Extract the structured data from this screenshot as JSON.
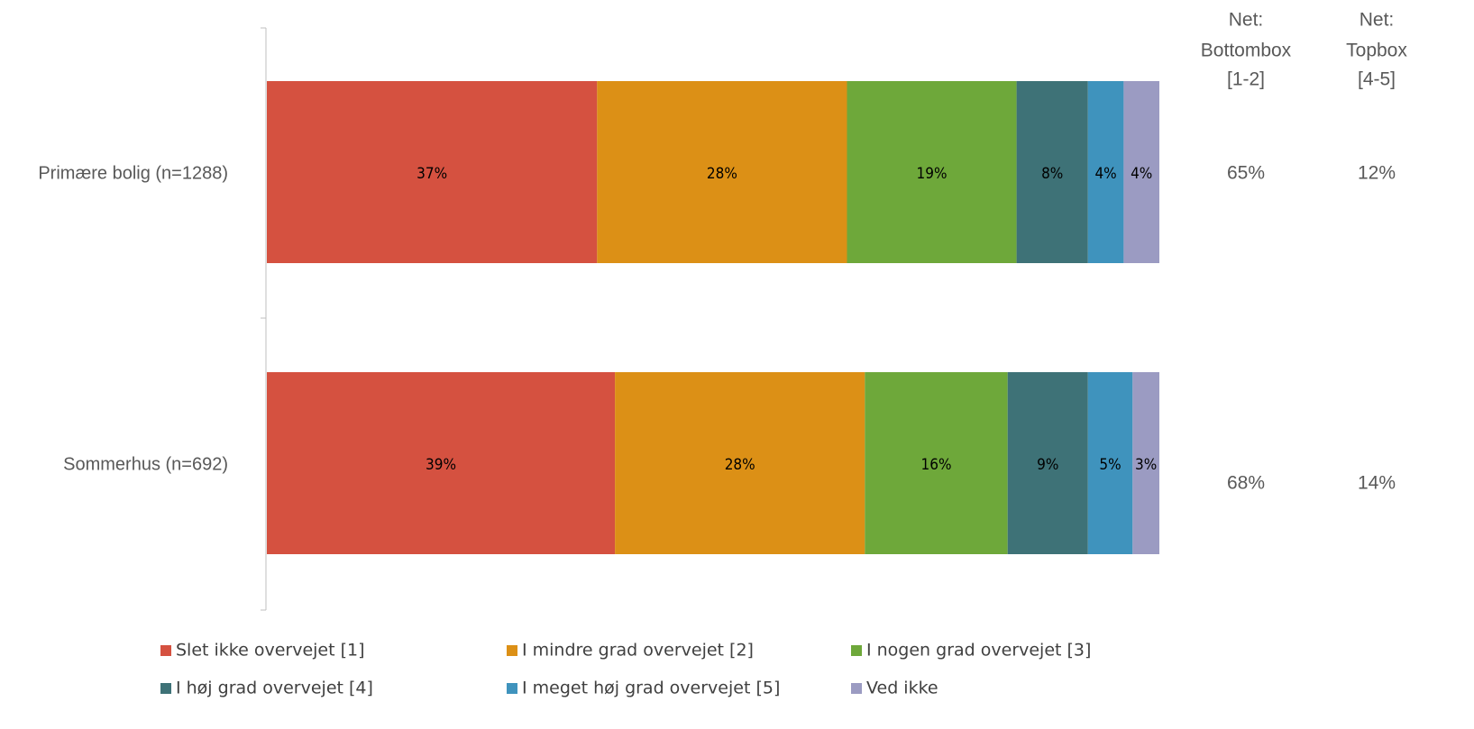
{
  "chart_data": {
    "type": "bar",
    "orientation": "horizontal",
    "stacked": true,
    "categories": [
      "Primære bolig (n=1288)",
      "Sommerhus (n=692)"
    ],
    "xlim": [
      0,
      100
    ],
    "series": [
      {
        "name": "Slet ikke overvejet [1]",
        "color": "#d55140",
        "values": [
          37,
          39
        ],
        "value_labels": [
          "37%",
          "39%"
        ]
      },
      {
        "name": "I mindre grad overvejet [2]",
        "color": "#dc9016",
        "values": [
          28,
          28
        ],
        "value_labels": [
          "28%",
          "28%"
        ]
      },
      {
        "name": "I nogen grad overvejet [3]",
        "color": "#6ea83a",
        "values": [
          19,
          16
        ],
        "value_labels": [
          "19%",
          "16%"
        ]
      },
      {
        "name": "I høj grad overvejet [4]",
        "color": "#3e7277",
        "values": [
          8,
          9
        ],
        "value_labels": [
          "8%",
          "9%"
        ]
      },
      {
        "name": "I meget høj grad overvejet [5]",
        "color": "#3f93bd",
        "values": [
          4,
          5
        ],
        "value_labels": [
          "4%",
          "5%"
        ]
      },
      {
        "name": "Ved ikke",
        "color": "#9b9bc2",
        "values": [
          4,
          3
        ],
        "value_labels": [
          "4%",
          "3%"
        ]
      }
    ],
    "net_columns": [
      {
        "header": [
          "Net:",
          "Bottombox",
          "[1-2]"
        ],
        "values": [
          65,
          68
        ],
        "value_labels": [
          "65%",
          "68%"
        ]
      },
      {
        "header": [
          "Net:",
          "Topbox",
          "[4-5]"
        ],
        "values": [
          12,
          14
        ],
        "value_labels": [
          "12%",
          "14%"
        ]
      }
    ]
  }
}
